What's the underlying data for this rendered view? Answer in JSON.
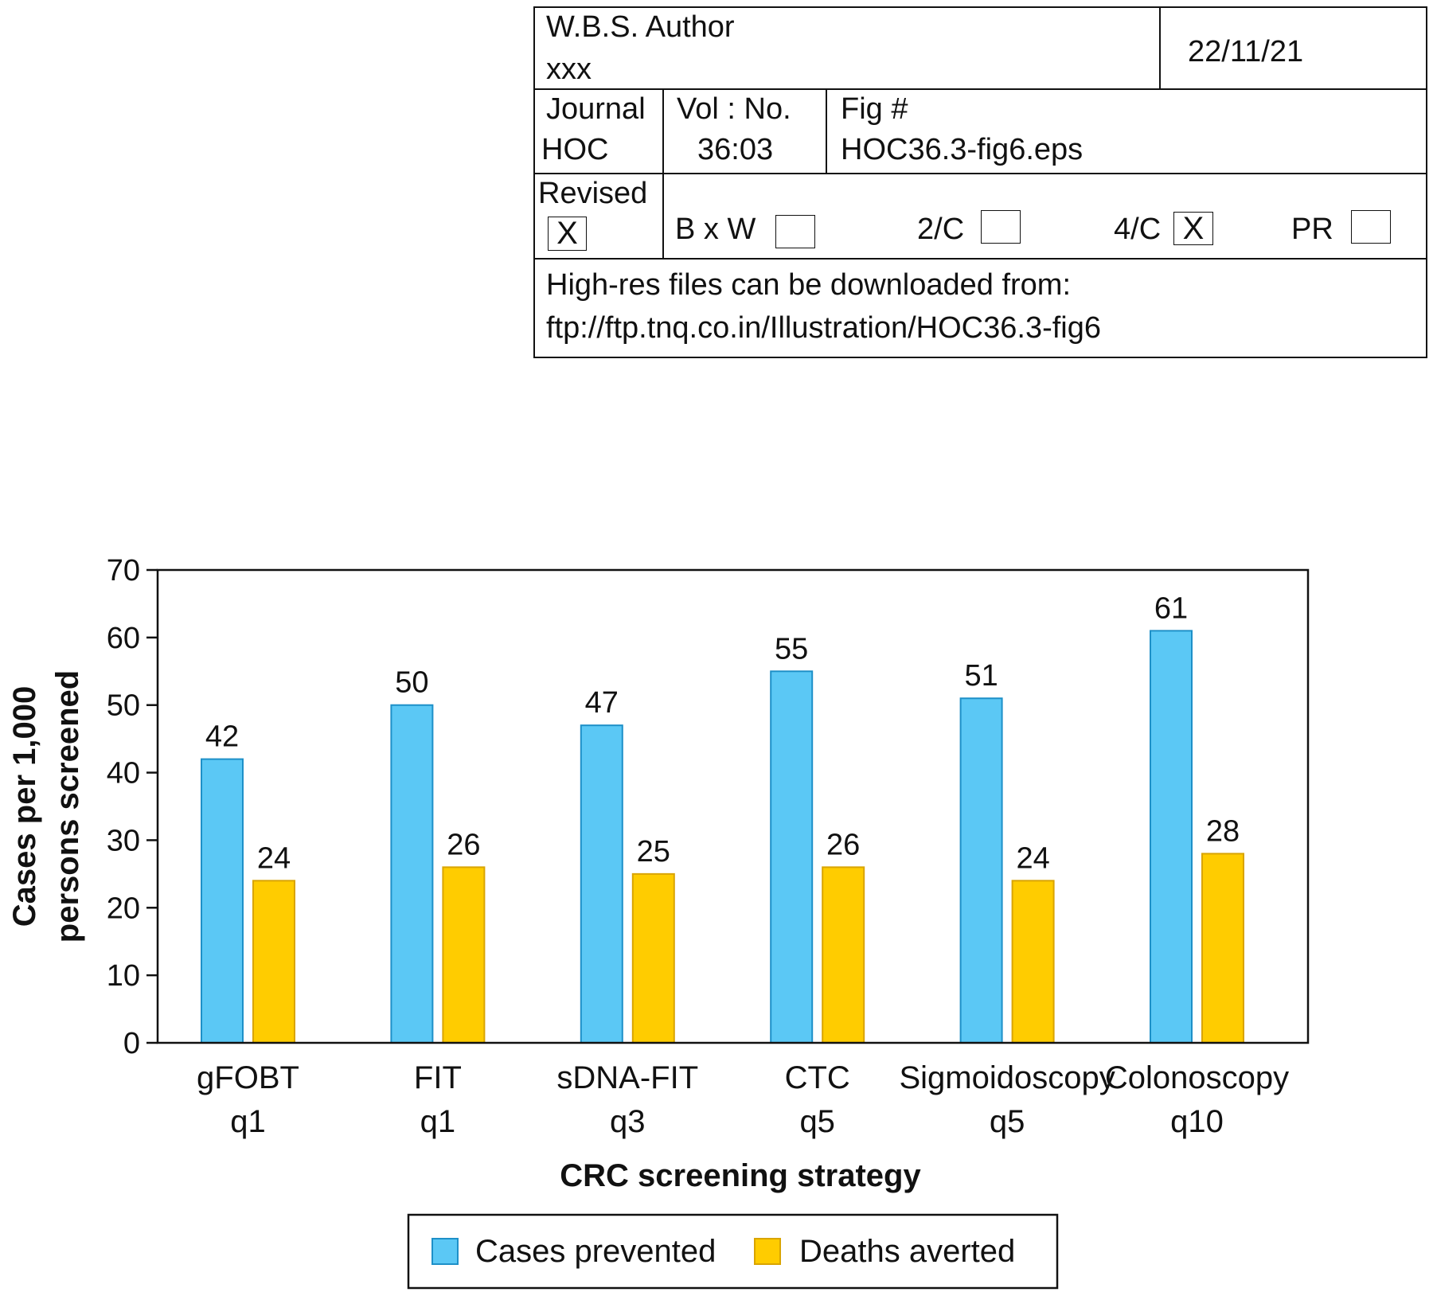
{
  "proof_box": {
    "author_label": "W.B.S. Author",
    "author_value": "xxx",
    "date": "22/11/21",
    "journal_label": "Journal",
    "journal_value": "HOC",
    "vol_label": "Vol : No.",
    "vol_value": "36:03",
    "fig_label": "Fig #",
    "fig_value": "HOC36.3-fig6.eps",
    "revised_label": "Revised",
    "revised_mark": "X",
    "options": [
      {
        "label": "B x W",
        "mark": ""
      },
      {
        "label": "2/C",
        "mark": ""
      },
      {
        "label": "4/C",
        "mark": "X"
      },
      {
        "label": "PR",
        "mark": ""
      }
    ],
    "note_line1": "High-res files can be downloaded from:",
    "note_line2": "ftp://ftp.tnq.co.in/Illustration/HOC36.3-fig6"
  },
  "chart_data": {
    "type": "bar",
    "categories": [
      [
        "gFOBT",
        "q1"
      ],
      [
        "FIT",
        "q1"
      ],
      [
        "sDNA-FIT",
        "q3"
      ],
      [
        "CTC",
        "q5"
      ],
      [
        "Sigmoidoscopy",
        "q5"
      ],
      [
        "Colonoscopy",
        "q10"
      ]
    ],
    "series": [
      {
        "name": "Cases prevented",
        "color": "#5BC8F5",
        "stroke": "#1E90C8",
        "values": [
          42,
          50,
          47,
          55,
          51,
          61
        ]
      },
      {
        "name": "Deaths averted",
        "color": "#FFCC00",
        "stroke": "#D9A400",
        "values": [
          24,
          26,
          25,
          26,
          24,
          28
        ]
      }
    ],
    "xlabel": "CRC screening strategy",
    "ylabel": [
      "Cases per 1,000",
      "persons screened"
    ],
    "ylim": [
      0,
      70
    ],
    "yticks": [
      0,
      10,
      20,
      30,
      40,
      50,
      60,
      70
    ],
    "grid": false,
    "legend": "bottom"
  }
}
